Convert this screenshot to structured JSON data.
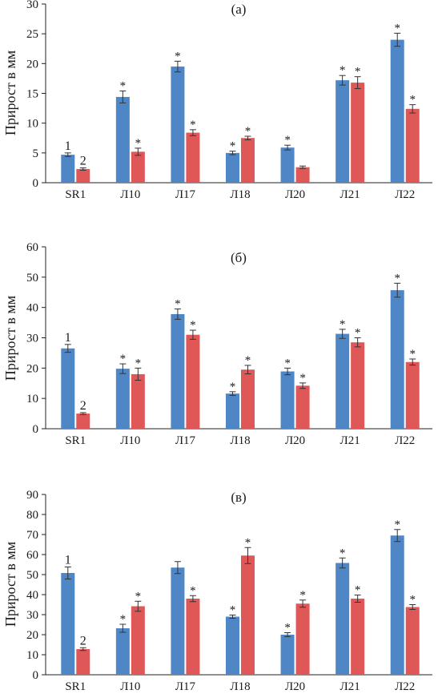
{
  "colors": {
    "series1": "#4f86c6",
    "series2": "#e05757",
    "axis": "#222222"
  },
  "chart_data": [
    {
      "type": "bar",
      "title": "(а)",
      "ylabel": "Прирост в мм",
      "ylim": [
        0,
        30
      ],
      "yticks": [
        0,
        5,
        10,
        15,
        20,
        25,
        30
      ],
      "categories": [
        "SR1",
        "Л10",
        "Л17",
        "Л18",
        "Л20",
        "Л21",
        "Л22"
      ],
      "series_markers": [
        "1",
        "2"
      ],
      "series": [
        {
          "values": [
            4.7,
            14.4,
            19.5,
            5.0,
            5.9,
            17.2,
            24.0
          ],
          "errors": [
            0.3,
            1.0,
            0.9,
            0.3,
            0.4,
            0.8,
            1.1
          ],
          "marks": [
            "",
            "*",
            "*",
            "*",
            "*",
            "*",
            "*"
          ]
        },
        {
          "values": [
            2.3,
            5.2,
            8.4,
            7.5,
            2.6,
            16.8,
            12.4
          ],
          "errors": [
            0.2,
            0.6,
            0.5,
            0.3,
            0.2,
            1.0,
            0.7
          ],
          "marks": [
            "",
            "*",
            "*",
            "*",
            "",
            "*",
            "*"
          ]
        }
      ]
    },
    {
      "type": "bar",
      "title": "(б)",
      "ylabel": "Прирост в мм",
      "ylim": [
        0,
        60
      ],
      "yticks": [
        0,
        10,
        20,
        30,
        40,
        50,
        60
      ],
      "categories": [
        "SR1",
        "Л10",
        "Л17",
        "Л18",
        "Л20",
        "Л21",
        "Л22"
      ],
      "series_markers": [
        "1",
        "2"
      ],
      "series": [
        {
          "values": [
            26.5,
            19.8,
            37.8,
            11.6,
            18.9,
            31.3,
            45.7
          ],
          "errors": [
            1.3,
            1.6,
            1.7,
            0.6,
            1.1,
            1.5,
            2.3
          ],
          "marks": [
            "",
            "*",
            "*",
            "*",
            "*",
            "*",
            "*"
          ]
        },
        {
          "values": [
            5.0,
            18.0,
            31.0,
            19.5,
            14.2,
            28.5,
            22.0
          ],
          "errors": [
            0.3,
            2.0,
            1.5,
            1.4,
            0.9,
            1.5,
            1.0
          ],
          "marks": [
            "",
            "*",
            "*",
            "*",
            "*",
            "*",
            "*"
          ]
        }
      ]
    },
    {
      "type": "bar",
      "title": "(в)",
      "ylabel": "Прирост в мм",
      "ylim": [
        0,
        90
      ],
      "yticks": [
        0,
        10,
        20,
        30,
        40,
        50,
        60,
        70,
        80,
        90
      ],
      "categories": [
        "SR1",
        "Л10",
        "Л17",
        "Л18",
        "Л20",
        "Л21",
        "Л22"
      ],
      "series_markers": [
        "1",
        "2"
      ],
      "series": [
        {
          "values": [
            50.8,
            23.2,
            53.5,
            29.0,
            20.0,
            55.8,
            69.5
          ],
          "errors": [
            3.0,
            2.0,
            3.0,
            0.8,
            1.0,
            2.5,
            3.0
          ],
          "marks": [
            "",
            "*",
            "",
            "*",
            "*",
            "*",
            "*"
          ]
        },
        {
          "values": [
            12.8,
            34.2,
            38.0,
            59.5,
            35.5,
            38.0,
            33.8
          ],
          "errors": [
            0.7,
            2.5,
            1.5,
            4.0,
            1.8,
            1.8,
            1.2
          ],
          "marks": [
            "",
            "*",
            "*",
            "*",
            "*",
            "*",
            "*"
          ]
        }
      ]
    }
  ]
}
